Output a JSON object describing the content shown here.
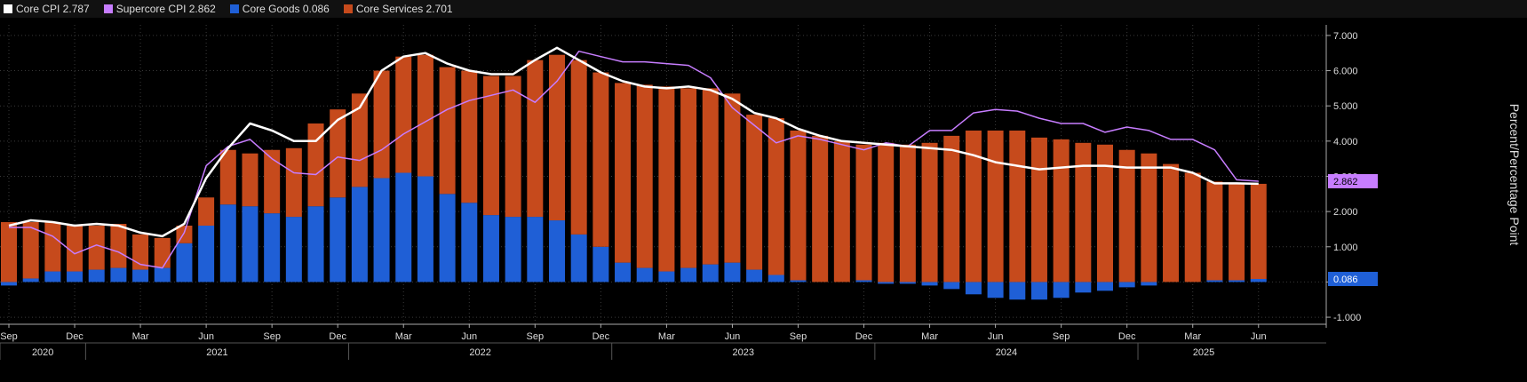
{
  "legend": [
    {
      "label": "Core CPI 2.787",
      "color": "#ffffff",
      "icon": "white-swatch"
    },
    {
      "label": "Supercore CPI 2.862",
      "color": "#c77dff",
      "icon": "purple-swatch"
    },
    {
      "label": "Core Goods 0.086",
      "color": "#1f5fd6",
      "icon": "blue-swatch"
    },
    {
      "label": "Core Services 2.701",
      "color": "#c64a1c",
      "icon": "orange-swatch"
    }
  ],
  "colors": {
    "background": "#000000",
    "grid": "#3a3a3a",
    "core_cpi": "#ffffff",
    "supercore": "#c77dff",
    "goods": "#1f5fd6",
    "services": "#c64a1c"
  },
  "chart_data": {
    "type": "bar",
    "stacked": true,
    "grid": true,
    "ylabel": "Percent/Percentage Point",
    "ylim": [
      -1.2,
      7.3
    ],
    "yticks": [
      7,
      6,
      5,
      4,
      3,
      2,
      1,
      0,
      -1
    ],
    "ytick_labels": [
      "7.000",
      "6.000",
      "5.000",
      "4.000",
      "3.000",
      "2.000",
      "1.000",
      "0.000",
      "-1.000"
    ],
    "x": [
      "2020-09",
      "2020-10",
      "2020-11",
      "2020-12",
      "2021-01",
      "2021-02",
      "2021-03",
      "2021-04",
      "2021-05",
      "2021-06",
      "2021-07",
      "2021-08",
      "2021-09",
      "2021-10",
      "2021-11",
      "2021-12",
      "2022-01",
      "2022-02",
      "2022-03",
      "2022-04",
      "2022-05",
      "2022-06",
      "2022-07",
      "2022-08",
      "2022-09",
      "2022-10",
      "2022-11",
      "2022-12",
      "2023-01",
      "2023-02",
      "2023-03",
      "2023-04",
      "2023-05",
      "2023-06",
      "2023-07",
      "2023-08",
      "2023-09",
      "2023-10",
      "2023-11",
      "2023-12",
      "2024-01",
      "2024-02",
      "2024-03",
      "2024-04",
      "2024-05",
      "2024-06",
      "2024-07",
      "2024-08",
      "2024-09",
      "2024-10",
      "2024-11",
      "2024-12",
      "2025-01",
      "2025-02",
      "2025-03",
      "2025-04",
      "2025-05",
      "2025-06"
    ],
    "xtick_labels": [
      {
        "i": 0,
        "label": "Sep"
      },
      {
        "i": 3,
        "label": "Dec"
      },
      {
        "i": 6,
        "label": "Mar"
      },
      {
        "i": 9,
        "label": "Jun"
      },
      {
        "i": 12,
        "label": "Sep"
      },
      {
        "i": 15,
        "label": "Dec"
      },
      {
        "i": 18,
        "label": "Mar"
      },
      {
        "i": 21,
        "label": "Jun"
      },
      {
        "i": 24,
        "label": "Sep"
      },
      {
        "i": 27,
        "label": "Dec"
      },
      {
        "i": 30,
        "label": "Mar"
      },
      {
        "i": 33,
        "label": "Jun"
      },
      {
        "i": 36,
        "label": "Sep"
      },
      {
        "i": 39,
        "label": "Dec"
      },
      {
        "i": 42,
        "label": "Mar"
      },
      {
        "i": 45,
        "label": "Jun"
      },
      {
        "i": 48,
        "label": "Sep"
      },
      {
        "i": 51,
        "label": "Dec"
      },
      {
        "i": 54,
        "label": "Mar"
      },
      {
        "i": 57,
        "label": "Jun"
      }
    ],
    "years": [
      {
        "label": "2020",
        "start": 0,
        "end": 3
      },
      {
        "label": "2021",
        "start": 4,
        "end": 15
      },
      {
        "label": "2022",
        "start": 16,
        "end": 27
      },
      {
        "label": "2023",
        "start": 28,
        "end": 39
      },
      {
        "label": "2024",
        "start": 40,
        "end": 51
      },
      {
        "label": "2025",
        "start": 52,
        "end": 57
      }
    ],
    "series": [
      {
        "name": "Core Goods",
        "kind": "bar",
        "values": [
          -0.1,
          0.1,
          0.3,
          0.3,
          0.35,
          0.4,
          0.35,
          0.4,
          1.1,
          1.6,
          2.2,
          2.15,
          1.95,
          1.85,
          2.15,
          2.4,
          2.7,
          2.95,
          3.1,
          3.0,
          2.5,
          2.25,
          1.9,
          1.85,
          1.85,
          1.75,
          1.35,
          1.0,
          0.55,
          0.4,
          0.3,
          0.4,
          0.5,
          0.55,
          0.35,
          0.2,
          0.05,
          0.0,
          0.0,
          0.05,
          -0.05,
          -0.05,
          -0.1,
          -0.2,
          -0.35,
          -0.45,
          -0.5,
          -0.5,
          -0.45,
          -0.3,
          -0.25,
          -0.15,
          -0.1,
          0.0,
          0.0,
          0.05,
          0.05,
          0.086
        ]
      },
      {
        "name": "Core Services",
        "kind": "bar",
        "values": [
          1.7,
          1.6,
          1.4,
          1.3,
          1.25,
          1.25,
          1.0,
          0.85,
          0.5,
          0.8,
          1.55,
          1.5,
          1.8,
          1.95,
          2.35,
          2.5,
          2.65,
          3.05,
          3.3,
          3.45,
          3.6,
          3.75,
          3.95,
          4.0,
          4.45,
          4.7,
          4.95,
          4.95,
          5.1,
          5.2,
          5.25,
          5.1,
          5.0,
          4.8,
          4.4,
          4.45,
          4.25,
          4.15,
          4.0,
          3.85,
          3.95,
          3.9,
          3.95,
          4.15,
          4.3,
          4.3,
          4.3,
          4.1,
          4.05,
          3.95,
          3.9,
          3.75,
          3.65,
          3.35,
          3.1,
          2.8,
          2.75,
          2.701
        ]
      },
      {
        "name": "Core CPI",
        "kind": "line",
        "values": [
          1.6,
          1.75,
          1.7,
          1.6,
          1.65,
          1.6,
          1.4,
          1.3,
          1.65,
          2.95,
          3.8,
          4.5,
          4.3,
          4.0,
          4.0,
          4.6,
          4.95,
          6.0,
          6.4,
          6.5,
          6.2,
          6.0,
          5.9,
          5.9,
          6.3,
          6.65,
          6.3,
          5.95,
          5.7,
          5.55,
          5.5,
          5.55,
          5.45,
          5.2,
          4.8,
          4.65,
          4.35,
          4.15,
          4.0,
          3.95,
          3.9,
          3.85,
          3.8,
          3.75,
          3.6,
          3.4,
          3.3,
          3.2,
          3.25,
          3.3,
          3.3,
          3.25,
          3.25,
          3.25,
          3.1,
          2.8,
          2.8,
          2.787
        ]
      },
      {
        "name": "Supercore CPI",
        "kind": "line",
        "values": [
          1.55,
          1.55,
          1.3,
          0.8,
          1.05,
          0.85,
          0.5,
          0.4,
          1.4,
          3.3,
          3.85,
          4.05,
          3.5,
          3.1,
          3.05,
          3.55,
          3.45,
          3.75,
          4.2,
          4.55,
          4.9,
          5.15,
          5.3,
          5.45,
          5.1,
          5.7,
          6.55,
          6.4,
          6.25,
          6.25,
          6.2,
          6.15,
          5.8,
          4.95,
          4.45,
          3.95,
          4.15,
          4.05,
          3.9,
          3.75,
          3.95,
          3.85,
          4.3,
          4.3,
          4.8,
          4.9,
          4.85,
          4.65,
          4.5,
          4.5,
          4.25,
          4.4,
          4.3,
          4.05,
          4.05,
          3.75,
          2.9,
          2.862
        ]
      }
    ],
    "value_flags": [
      {
        "label": "2.862",
        "value": 2.862,
        "series": "Supercore CPI"
      },
      {
        "label": "0.086",
        "value": 0.086,
        "series": "Core Goods"
      }
    ]
  }
}
